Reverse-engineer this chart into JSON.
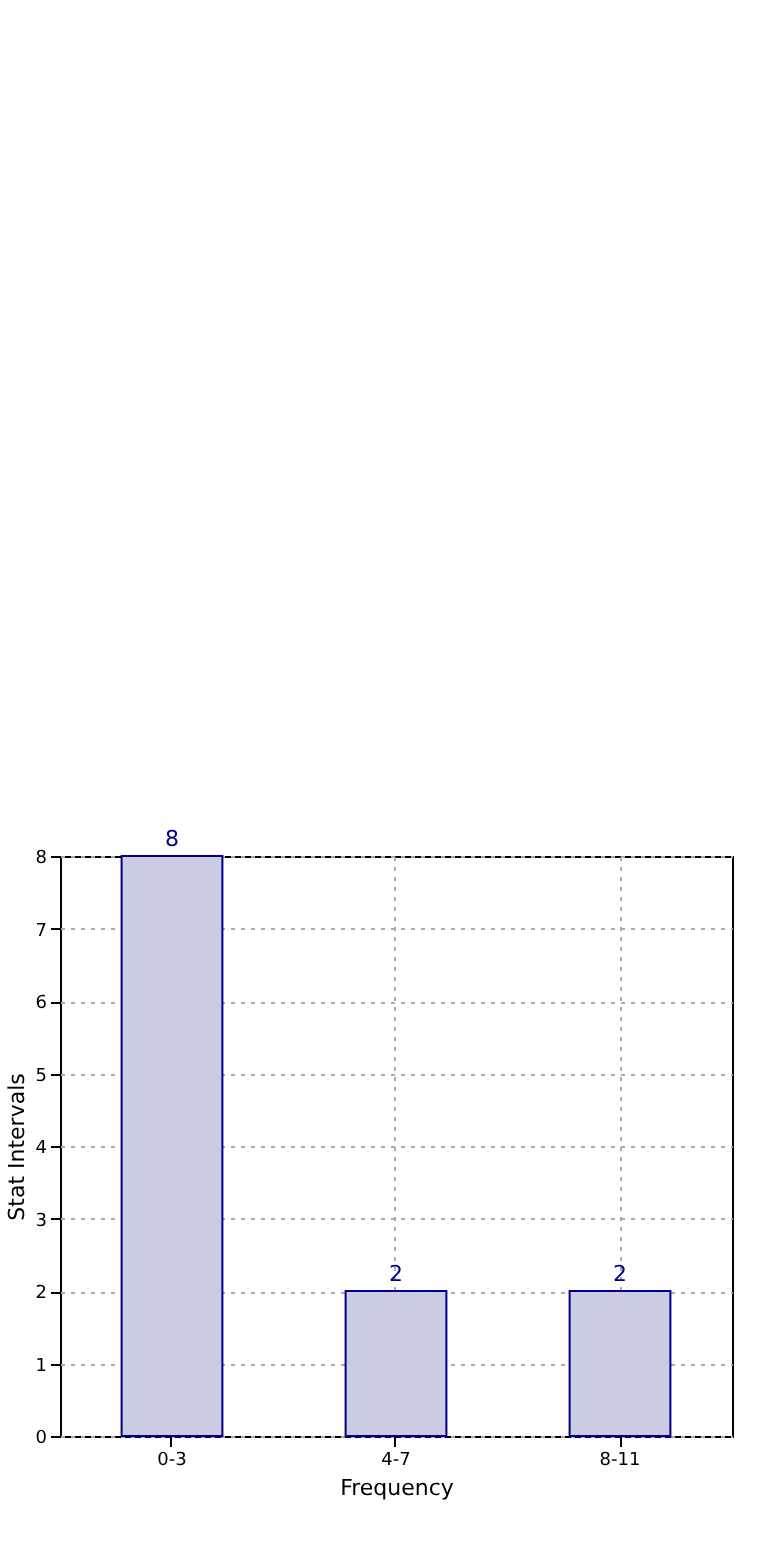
{
  "chart_data": {
    "type": "bar",
    "xlabel": "Frequency",
    "ylabel": "Stat Intervals",
    "categories": [
      "0-3",
      "4-7",
      "8-11"
    ],
    "values": [
      8,
      2,
      2
    ],
    "color": "#cbcbe3",
    "ylim": [
      0,
      8
    ],
    "yticks": [
      0,
      1,
      2,
      3,
      4,
      5,
      6,
      7,
      8
    ],
    "grid": true,
    "data_labels": true
  }
}
